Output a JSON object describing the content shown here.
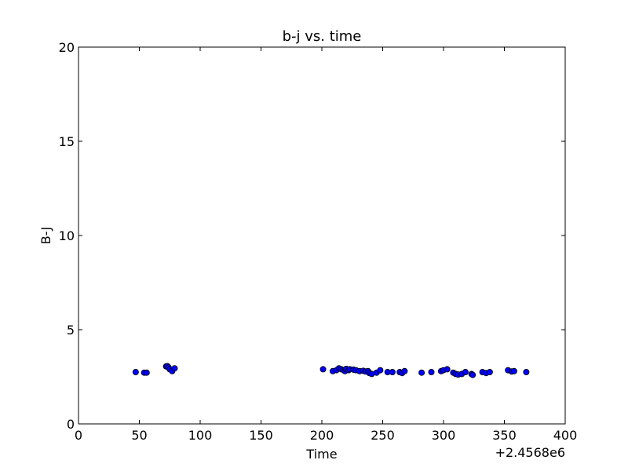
{
  "chart_data": {
    "type": "scatter",
    "title": "b-j vs. time",
    "xlabel": "Time",
    "ylabel": "B-J",
    "x_offset_label": "+2.4568e6",
    "xlim": [
      0,
      400
    ],
    "ylim": [
      0,
      20
    ],
    "x_ticks": [
      0,
      50,
      100,
      150,
      200,
      250,
      300,
      350,
      400
    ],
    "y_ticks": [
      0,
      5,
      10,
      15,
      20
    ],
    "grid": false,
    "marker_color": "#0000ff",
    "points": [
      [
        47,
        2.75
      ],
      [
        54,
        2.72
      ],
      [
        56,
        2.72
      ],
      [
        72,
        3.05
      ],
      [
        73,
        3.07
      ],
      [
        74,
        3.0
      ],
      [
        75,
        2.9
      ],
      [
        77,
        2.8
      ],
      [
        79,
        2.95
      ],
      [
        201,
        2.9
      ],
      [
        209,
        2.8
      ],
      [
        212,
        2.85
      ],
      [
        214,
        2.95
      ],
      [
        216,
        2.9
      ],
      [
        218,
        2.85
      ],
      [
        219,
        2.8
      ],
      [
        220,
        2.92
      ],
      [
        222,
        2.85
      ],
      [
        223,
        2.9
      ],
      [
        226,
        2.88
      ],
      [
        228,
        2.85
      ],
      [
        231,
        2.8
      ],
      [
        234,
        2.82
      ],
      [
        236,
        2.78
      ],
      [
        238,
        2.8
      ],
      [
        239,
        2.7
      ],
      [
        241,
        2.65
      ],
      [
        245,
        2.72
      ],
      [
        248,
        2.85
      ],
      [
        254,
        2.75
      ],
      [
        258,
        2.75
      ],
      [
        264,
        2.75
      ],
      [
        266,
        2.7
      ],
      [
        268,
        2.8
      ],
      [
        282,
        2.72
      ],
      [
        290,
        2.75
      ],
      [
        298,
        2.8
      ],
      [
        300,
        2.85
      ],
      [
        303,
        2.9
      ],
      [
        308,
        2.72
      ],
      [
        310,
        2.65
      ],
      [
        312,
        2.62
      ],
      [
        315,
        2.65
      ],
      [
        318,
        2.75
      ],
      [
        323,
        2.65
      ],
      [
        324,
        2.6
      ],
      [
        332,
        2.75
      ],
      [
        335,
        2.7
      ],
      [
        338,
        2.75
      ],
      [
        353,
        2.85
      ],
      [
        356,
        2.78
      ],
      [
        358,
        2.8
      ],
      [
        368,
        2.75
      ]
    ]
  }
}
